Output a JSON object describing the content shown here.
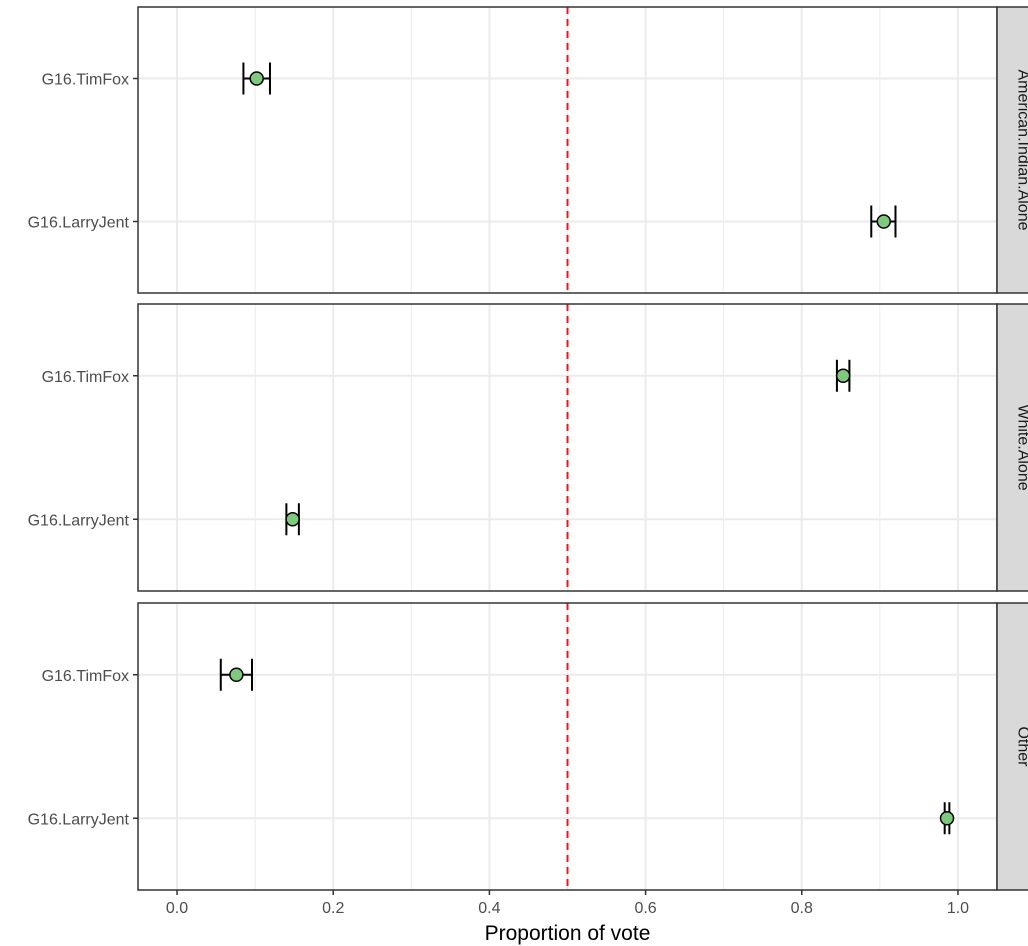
{
  "chart_data": {
    "type": "scatter",
    "subtype": "faceted point-range with error bars",
    "xlabel": "Proportion of vote",
    "ylabel": "",
    "xlim": [
      -0.05,
      1.05
    ],
    "x_ticks": [
      "0.0",
      "0.2",
      "0.4",
      "0.6",
      "0.8",
      "1.0"
    ],
    "x_tick_values": [
      0.0,
      0.2,
      0.4,
      0.6,
      0.8,
      1.0
    ],
    "categories": [
      "G16.TimFox",
      "G16.LarryJent"
    ],
    "reference_line": {
      "x": 0.5,
      "style": "dashed",
      "color": "#e41a1c"
    },
    "grid": true,
    "colors": {
      "point_fill": "#7fc97f",
      "point_stroke": "#000000",
      "error_bar": "#000000",
      "strip_fill": "#d9d9d9",
      "grid": "#ebebeb",
      "panel_border": "#333333"
    },
    "facets": [
      {
        "label": "American.Indian.Alone",
        "points": [
          {
            "category": "G16.TimFox",
            "x": 0.102,
            "lo": 0.085,
            "hi": 0.119
          },
          {
            "category": "G16.LarryJent",
            "x": 0.905,
            "lo": 0.889,
            "hi": 0.92
          }
        ]
      },
      {
        "label": "White.Alone",
        "points": [
          {
            "category": "G16.TimFox",
            "x": 0.853,
            "lo": 0.845,
            "hi": 0.861
          },
          {
            "category": "G16.LarryJent",
            "x": 0.148,
            "lo": 0.14,
            "hi": 0.156
          }
        ]
      },
      {
        "label": "Other",
        "points": [
          {
            "category": "G16.TimFox",
            "x": 0.076,
            "lo": 0.056,
            "hi": 0.096
          },
          {
            "category": "G16.LarryJent",
            "x": 0.986,
            "lo": 0.983,
            "hi": 0.989
          }
        ]
      }
    ]
  }
}
